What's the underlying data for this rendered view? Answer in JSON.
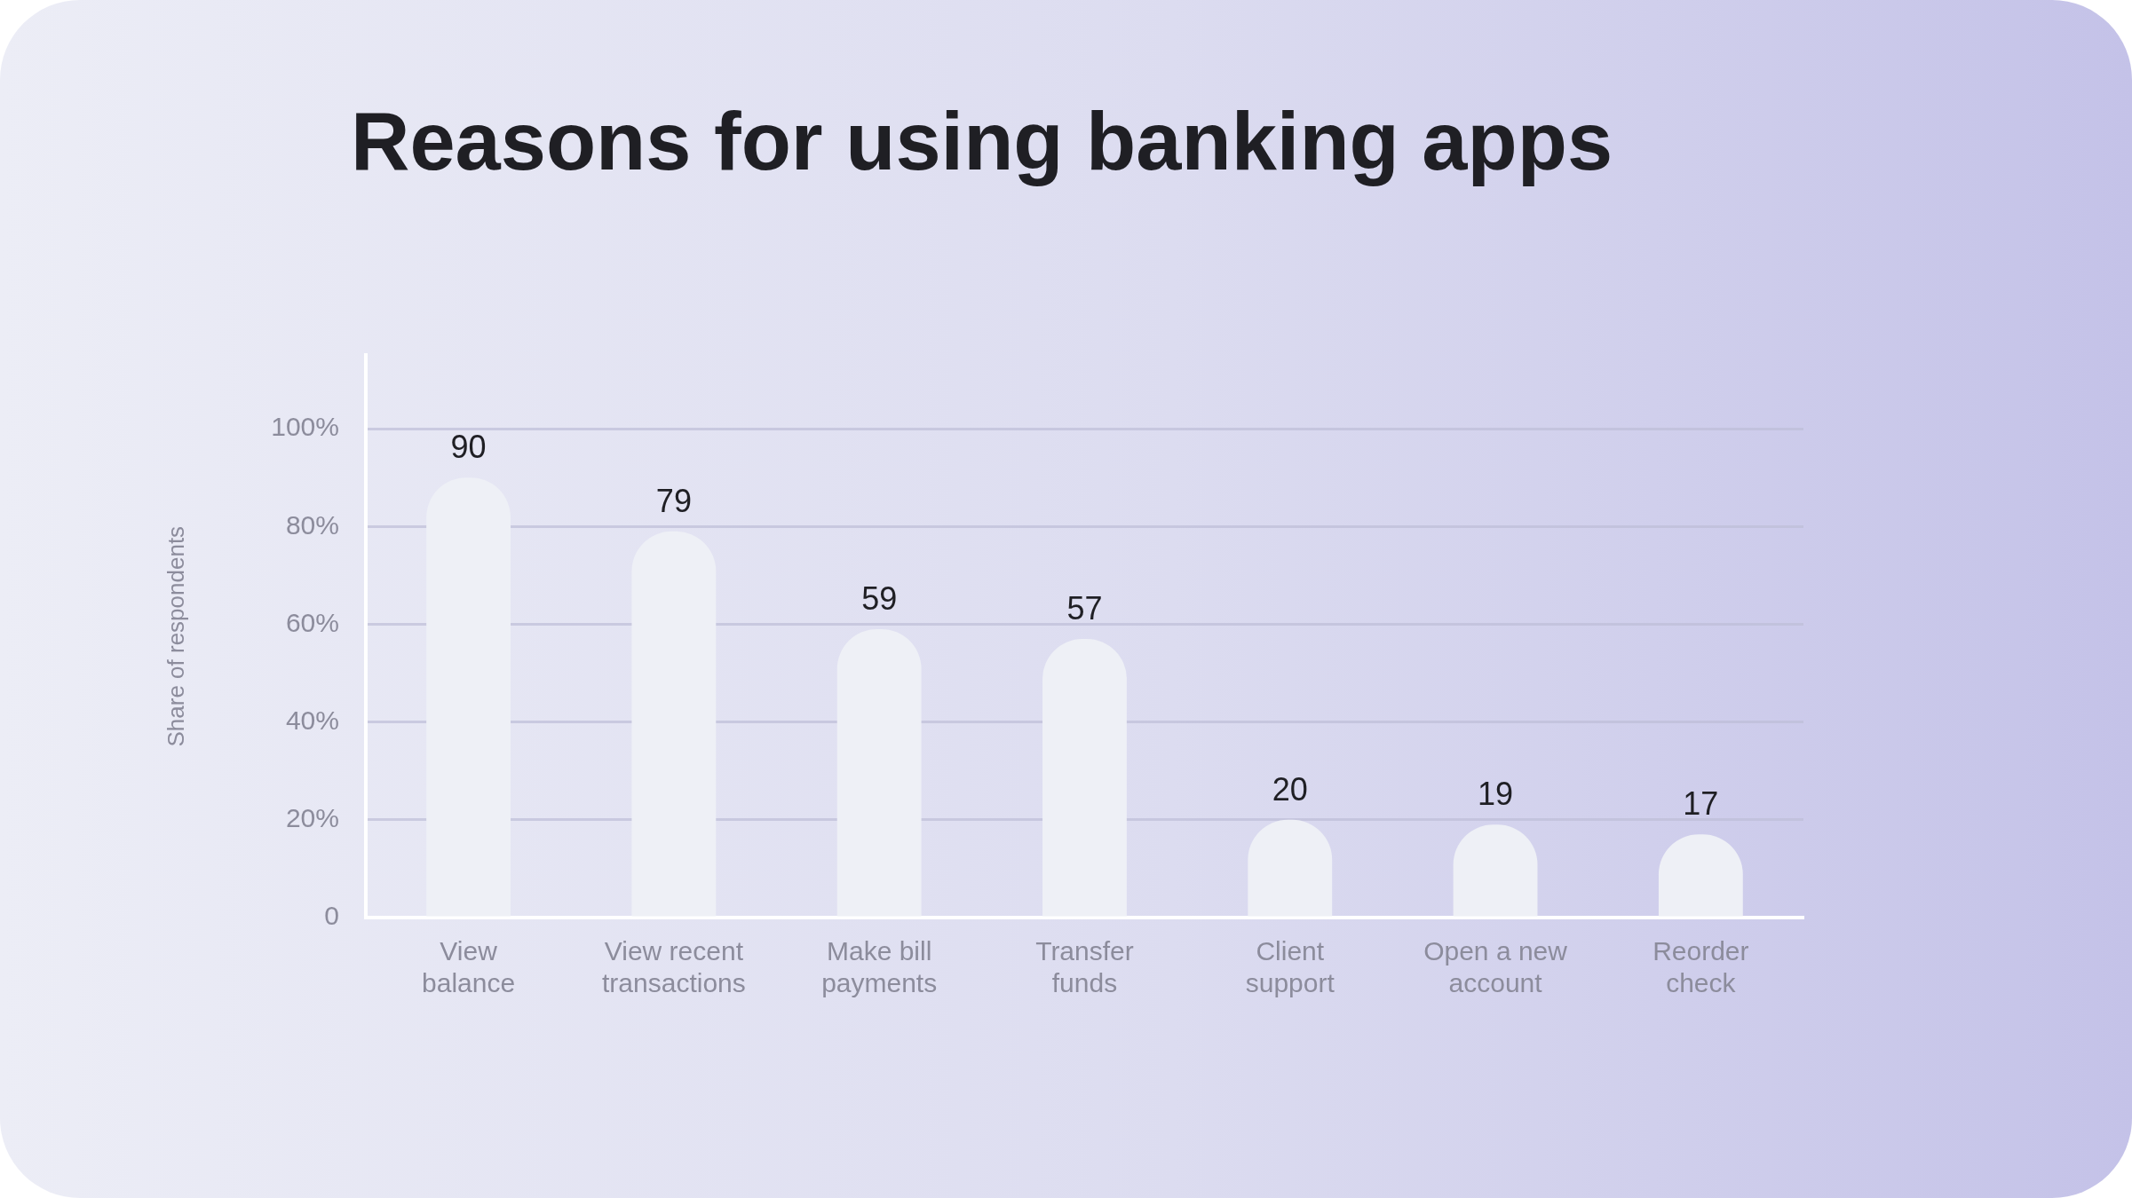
{
  "chart_data": {
    "type": "bar",
    "title": "Reasons for using banking apps",
    "ylabel": "Share of respondents",
    "categories": [
      "View balance",
      "View recent transactions",
      "Make bill payments",
      "Transfer funds",
      "Client support",
      "Open a new account",
      "Reorder check"
    ],
    "values": [
      90,
      79,
      59,
      57,
      20,
      19,
      17
    ],
    "color": "#eef0f6",
    "ylim": [
      0,
      115
    ],
    "yticks": [
      0,
      {
        "value": 20,
        "label": "20%"
      },
      {
        "value": 40,
        "label": "40%"
      },
      {
        "value": 60,
        "label": "60%"
      },
      {
        "value": 80,
        "label": "80%"
      },
      {
        "value": 100,
        "label": "100%"
      }
    ],
    "grid": "y",
    "data_labels": true,
    "legend": false
  }
}
